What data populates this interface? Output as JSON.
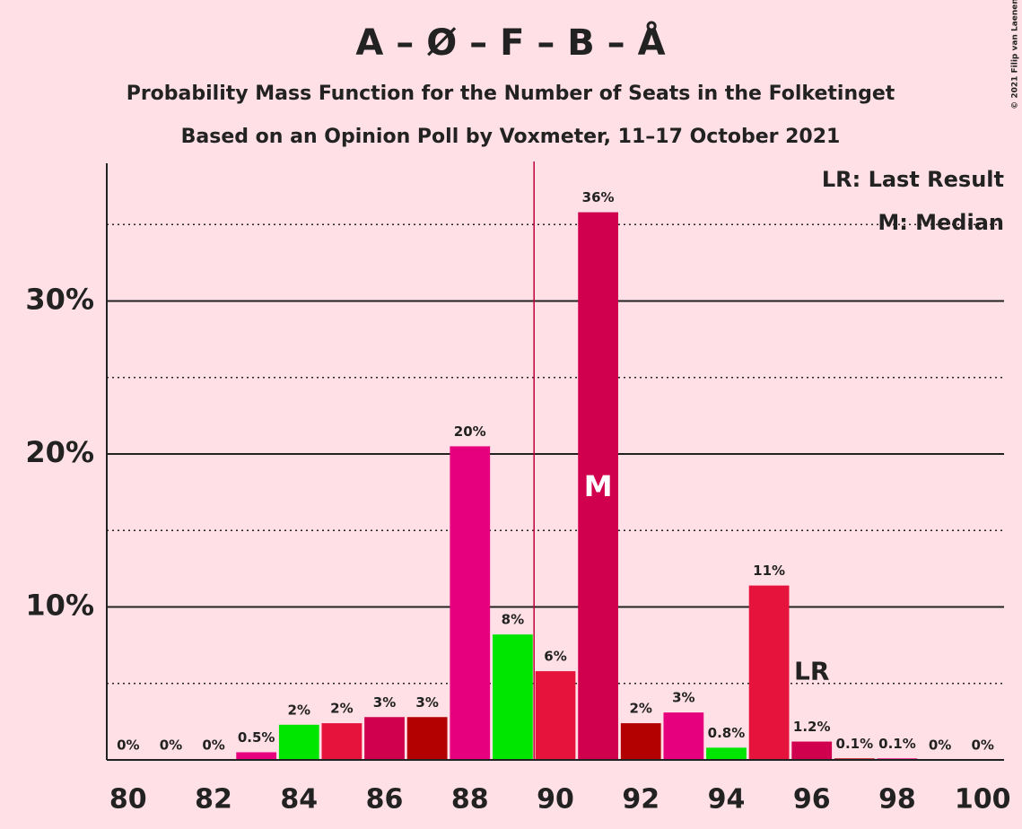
{
  "chart_data": {
    "type": "bar",
    "title": "A – Ø – F – B – Å",
    "subtitles": [
      "Probability Mass Function for the Number of Seats in the Folketinget",
      "Based on an Opinion Poll by Voxmeter, 11–17 October 2021"
    ],
    "x": [
      80,
      81,
      82,
      83,
      84,
      85,
      86,
      87,
      88,
      89,
      90,
      91,
      92,
      93,
      94,
      95,
      96,
      97,
      98,
      99,
      100
    ],
    "values": [
      0,
      0,
      0,
      0.5,
      2.3,
      2.4,
      2.8,
      2.8,
      20.5,
      8.2,
      5.8,
      35.8,
      2.4,
      3.1,
      0.8,
      11.4,
      1.2,
      0.1,
      0.1,
      0,
      0
    ],
    "value_labels": [
      "0%",
      "0%",
      "0%",
      "0.5%",
      "2%",
      "2%",
      "3%",
      "3%",
      "20%",
      "8%",
      "6%",
      "36%",
      "2%",
      "3%",
      "0.8%",
      "11%",
      "1.2%",
      "0.1%",
      "0.1%",
      "0%",
      "0%"
    ],
    "colors": [
      "#e6143c",
      "#d0004f",
      "#b30000",
      "#e6007e",
      "#00e600",
      "#e6143c",
      "#d0004f",
      "#b30000",
      "#e6007e",
      "#00e600",
      "#e6143c",
      "#d0004f",
      "#b30000",
      "#e6007e",
      "#00e600",
      "#e6143c",
      "#d0004f",
      "#b30000",
      "#e6007e",
      "#00e600",
      "#e6143c"
    ],
    "xlim": [
      79.5,
      100.5
    ],
    "xticks": [
      80,
      82,
      84,
      86,
      88,
      90,
      92,
      94,
      96,
      98,
      100
    ],
    "ylim": [
      0,
      39
    ],
    "yticks": [
      {
        "value": 10,
        "label": "10%"
      },
      {
        "value": 20,
        "label": "20%"
      },
      {
        "value": 30,
        "label": "30%"
      }
    ],
    "minor_grid": [
      5,
      15,
      25,
      35
    ],
    "grid": true,
    "majority_line": 89.5,
    "median": 91,
    "median_label": "M",
    "last_result": 96,
    "last_result_label": "LR",
    "legend": [
      "LR: Last Result",
      "M: Median"
    ],
    "legend_position": "upper right",
    "copyright": "© 2021 Filip van Laenen"
  }
}
